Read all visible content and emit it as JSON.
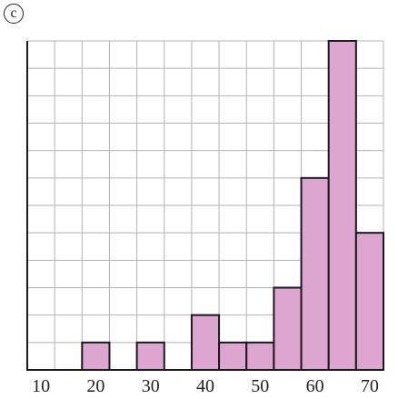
{
  "panel_label": "c",
  "chart_data": {
    "type": "bar",
    "title": "",
    "xlabel": "",
    "ylabel": "",
    "x_tick_labels": [
      "10",
      "20",
      "30",
      "40",
      "50",
      "60",
      "70"
    ],
    "x_tick_values": [
      10,
      20,
      30,
      40,
      50,
      60,
      70
    ],
    "bins": [
      {
        "from": 17.5,
        "to": 22.5,
        "value": 1
      },
      {
        "from": 27.5,
        "to": 32.5,
        "value": 1
      },
      {
        "from": 37.5,
        "to": 42.5,
        "value": 2
      },
      {
        "from": 42.5,
        "to": 47.5,
        "value": 1
      },
      {
        "from": 47.5,
        "to": 52.5,
        "value": 1
      },
      {
        "from": 52.5,
        "to": 57.5,
        "value": 3
      },
      {
        "from": 57.5,
        "to": 62.5,
        "value": 7
      },
      {
        "from": 62.5,
        "to": 67.5,
        "value": 12
      },
      {
        "from": 67.5,
        "to": 72.5,
        "value": 5
      }
    ],
    "xlim": [
      7.5,
      72.5
    ],
    "ylim": [
      0,
      12
    ],
    "grid": true,
    "grid_step_x": 5,
    "grid_step_y": 1,
    "colors": {
      "bar_fill": "#dca6d0",
      "bar_stroke": "#1a1a1a",
      "grid": "#b3b3b3",
      "axis": "#1a1a1a"
    }
  }
}
